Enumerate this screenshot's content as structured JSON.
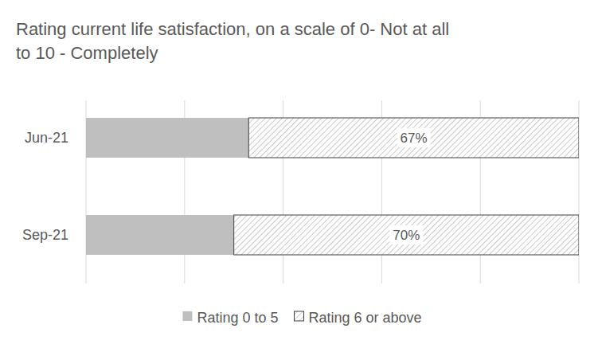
{
  "chart_data": {
    "type": "bar",
    "orientation": "horizontal",
    "stacked": true,
    "title": "Rating current life satisfaction, on a scale of 0- Not at all to 10 - Completely",
    "categories": [
      "Jun-21",
      "Sep-21"
    ],
    "series": [
      {
        "name": "Rating 0 to 5",
        "color": "#bfbfbf",
        "values": [
          33,
          30
        ],
        "data_labels": false
      },
      {
        "name": "Rating 6 or above",
        "color": "#a6a6a6",
        "values": [
          67,
          70
        ],
        "value_labels": [
          "67%",
          "70%"
        ],
        "data_labels": true
      }
    ],
    "xlim": [
      0,
      100
    ],
    "xticks": [
      0,
      20,
      40,
      60,
      80,
      100
    ],
    "grid": true,
    "tick_labels": "y",
    "legend": "bottom"
  }
}
